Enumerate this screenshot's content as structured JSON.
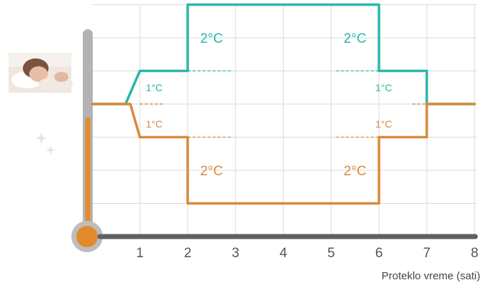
{
  "chart_data": {
    "type": "line",
    "xlabel": "Proteklo vreme (sati)",
    "ylabel": "",
    "title": "",
    "x_ticks": [
      "1",
      "2",
      "3",
      "4",
      "5",
      "6",
      "7",
      "8"
    ],
    "xlim": [
      0,
      8
    ],
    "ylim": [
      -4,
      4
    ],
    "grid": true,
    "legend": "none",
    "series": [
      {
        "color": "#2bb6a8",
        "x": [
          0,
          0.7,
          1,
          2,
          2,
          6,
          6,
          7,
          7,
          8
        ],
        "y": [
          0,
          0,
          1,
          1,
          3,
          3,
          1,
          1,
          0,
          0
        ]
      },
      {
        "color": "#d98a3a",
        "x": [
          0,
          0.8,
          1,
          2,
          2,
          6,
          6,
          7,
          7,
          8
        ],
        "y": [
          0,
          0,
          -1,
          -1,
          -3,
          -3,
          -1,
          -1,
          0,
          0
        ]
      }
    ],
    "annotations": [
      {
        "text": "2°C",
        "x": 2.5,
        "y": 2,
        "size": "big",
        "color": "#2bb6a8"
      },
      {
        "text": "2°C",
        "x": 5.5,
        "y": 2,
        "size": "big",
        "color": "#2bb6a8"
      },
      {
        "text": "1°C",
        "x": 1.3,
        "y": 0.5,
        "size": "small",
        "color": "#2bb6a8"
      },
      {
        "text": "1°C",
        "x": 6.1,
        "y": 0.5,
        "size": "small",
        "color": "#2bb6a8"
      },
      {
        "text": "1°C",
        "x": 1.3,
        "y": -0.6,
        "size": "small",
        "color": "#d98a3a"
      },
      {
        "text": "1°C",
        "x": 6.1,
        "y": -0.6,
        "size": "small",
        "color": "#d98a3a"
      },
      {
        "text": "2°C",
        "x": 2.5,
        "y": -2,
        "size": "big",
        "color": "#d98a3a"
      },
      {
        "text": "2°C",
        "x": 5.5,
        "y": -2,
        "size": "big",
        "color": "#d98a3a"
      }
    ],
    "reference_dashes": [
      {
        "x": [
          2,
          2.9
        ],
        "y": 1,
        "color": "#2bb6a8"
      },
      {
        "x": [
          5.1,
          6
        ],
        "y": 1,
        "color": "#2bb6a8"
      },
      {
        "x": [
          1,
          1.5
        ],
        "y": 0,
        "color": "#2bb6a8"
      },
      {
        "x": [
          6.7,
          7
        ],
        "y": 0,
        "color": "#2bb6a8"
      },
      {
        "x": [
          2,
          2.9
        ],
        "y": -1,
        "color": "#d98a3a"
      },
      {
        "x": [
          5.1,
          6
        ],
        "y": -1,
        "color": "#d98a3a"
      },
      {
        "x": [
          1,
          1.5
        ],
        "y": 0,
        "color": "#d98a3a"
      },
      {
        "x": [
          6.7,
          7
        ],
        "y": 0,
        "color": "#d98a3a"
      }
    ]
  },
  "icons": {
    "photo": "sleeping-person-photo",
    "night": "moon-stars-icon",
    "thermometer": "thermometer-icon"
  },
  "colors": {
    "teal": "#2bb6a8",
    "orange": "#d98a3a",
    "axis": "#5f5f66",
    "grid": "#d9d9d9",
    "thermo_tube": "#b3b3b3"
  }
}
